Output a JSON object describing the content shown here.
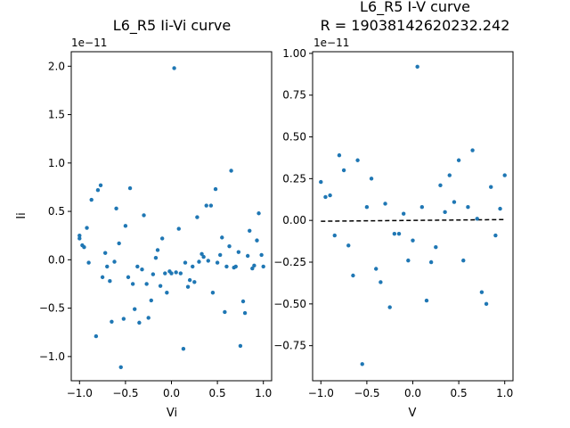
{
  "chart_data": [
    {
      "type": "scatter",
      "title": "L6_R5 Ii-Vi curve",
      "xlabel": "Vi",
      "ylabel": "Ii",
      "offset_text": "1e−11",
      "xlim": [
        -1.09,
        1.09
      ],
      "ylim": [
        -1.25,
        2.15
      ],
      "xticks": [
        -1.0,
        -0.5,
        0.0,
        0.5,
        1.0
      ],
      "xtick_labels": [
        "−1.0",
        "−0.5",
        "0.0",
        "0.5",
        "1.0"
      ],
      "yticks": [
        -1.0,
        -0.5,
        0.0,
        0.5,
        1.0,
        1.5,
        2.0
      ],
      "ytick_labels": [
        "−1.0",
        "−0.5",
        "0.0",
        "0.5",
        "1.0",
        "1.5",
        "2.0"
      ],
      "color": "#1f77b4",
      "grid": false,
      "x": [
        -1.0,
        -1.0,
        -0.97,
        -0.95,
        -0.92,
        -0.9,
        -0.87,
        -0.82,
        -0.8,
        -0.77,
        -0.75,
        -0.72,
        -0.7,
        -0.67,
        -0.65,
        -0.62,
        -0.6,
        -0.57,
        -0.55,
        -0.52,
        -0.5,
        -0.47,
        -0.45,
        -0.42,
        -0.4,
        -0.37,
        -0.35,
        -0.32,
        -0.3,
        -0.27,
        -0.25,
        -0.22,
        -0.2,
        -0.17,
        -0.15,
        -0.12,
        -0.1,
        -0.07,
        -0.05,
        -0.02,
        0.0,
        0.03,
        0.05,
        0.08,
        0.1,
        0.13,
        0.15,
        0.18,
        0.2,
        0.23,
        0.25,
        0.28,
        0.3,
        0.33,
        0.35,
        0.38,
        0.4,
        0.43,
        0.45,
        0.48,
        0.5,
        0.53,
        0.55,
        0.58,
        0.6,
        0.63,
        0.65,
        0.68,
        0.7,
        0.73,
        0.75,
        0.78,
        0.8,
        0.83,
        0.85,
        0.88,
        0.9,
        0.93,
        0.95,
        0.98,
        1.0
      ],
      "y": [
        0.25,
        0.22,
        0.15,
        0.13,
        0.33,
        -0.03,
        0.62,
        -0.79,
        0.72,
        0.77,
        -0.18,
        0.07,
        -0.07,
        -0.22,
        -0.64,
        -0.02,
        0.53,
        0.17,
        -1.11,
        -0.61,
        0.35,
        -0.18,
        0.74,
        -0.25,
        -0.51,
        -0.07,
        -0.65,
        -0.1,
        0.46,
        -0.25,
        -0.6,
        -0.42,
        -0.15,
        0.02,
        0.1,
        -0.27,
        0.22,
        -0.14,
        -0.34,
        -0.12,
        -0.14,
        1.98,
        -0.13,
        0.32,
        -0.14,
        -0.92,
        -0.03,
        -0.28,
        -0.21,
        -0.07,
        -0.23,
        0.44,
        -0.02,
        0.06,
        0.03,
        0.56,
        -0.01,
        0.56,
        -0.34,
        0.73,
        -0.03,
        0.05,
        0.23,
        -0.54,
        -0.07,
        0.14,
        0.92,
        -0.08,
        -0.07,
        0.08,
        -0.89,
        -0.43,
        -0.55,
        0.04,
        0.3,
        -0.09,
        -0.06,
        0.2,
        0.48,
        0.05,
        -0.07
      ]
    },
    {
      "type": "scatter",
      "title": "L6_R5 I-V curve",
      "subtitle": "R = 19038142620232.242",
      "xlabel": "V",
      "ylabel": "",
      "offset_text": "1e−11",
      "xlim": [
        -1.09,
        1.09
      ],
      "ylim": [
        -0.96,
        1.01
      ],
      "xticks": [
        -1.0,
        -0.5,
        0.0,
        0.5,
        1.0
      ],
      "xtick_labels": [
        "−1.0",
        "−0.5",
        "0.0",
        "0.5",
        "1.0"
      ],
      "yticks": [
        -0.75,
        -0.5,
        -0.25,
        0.0,
        0.25,
        0.5,
        0.75,
        1.0
      ],
      "ytick_labels": [
        "−0.75",
        "−0.50",
        "−0.25",
        "0.00",
        "0.25",
        "0.50",
        "0.75",
        "1.00"
      ],
      "color": "#1f77b4",
      "grid": false,
      "fit_line": {
        "x": [
          -1.0,
          1.0
        ],
        "y": [
          -0.005,
          0.005
        ],
        "color": "#000000",
        "style": "dashed"
      },
      "x": [
        -1.0,
        -0.95,
        -0.9,
        -0.85,
        -0.8,
        -0.75,
        -0.7,
        -0.65,
        -0.6,
        -0.55,
        -0.5,
        -0.45,
        -0.4,
        -0.35,
        -0.3,
        -0.25,
        -0.2,
        -0.15,
        -0.1,
        -0.05,
        0.0,
        0.05,
        0.1,
        0.15,
        0.2,
        0.25,
        0.3,
        0.35,
        0.4,
        0.45,
        0.5,
        0.55,
        0.6,
        0.65,
        0.7,
        0.75,
        0.8,
        0.85,
        0.9,
        0.95,
        1.0
      ],
      "y": [
        0.23,
        0.14,
        0.15,
        -0.09,
        0.39,
        0.3,
        -0.15,
        -0.33,
        0.36,
        -0.86,
        0.08,
        0.25,
        -0.29,
        -0.37,
        0.1,
        -0.52,
        -0.08,
        -0.08,
        0.04,
        -0.24,
        -0.12,
        0.92,
        0.08,
        -0.48,
        -0.25,
        -0.16,
        0.21,
        0.05,
        0.27,
        0.11,
        0.36,
        -0.24,
        0.08,
        0.42,
        0.01,
        -0.43,
        -0.5,
        0.2,
        -0.09,
        0.07,
        0.27
      ]
    }
  ]
}
